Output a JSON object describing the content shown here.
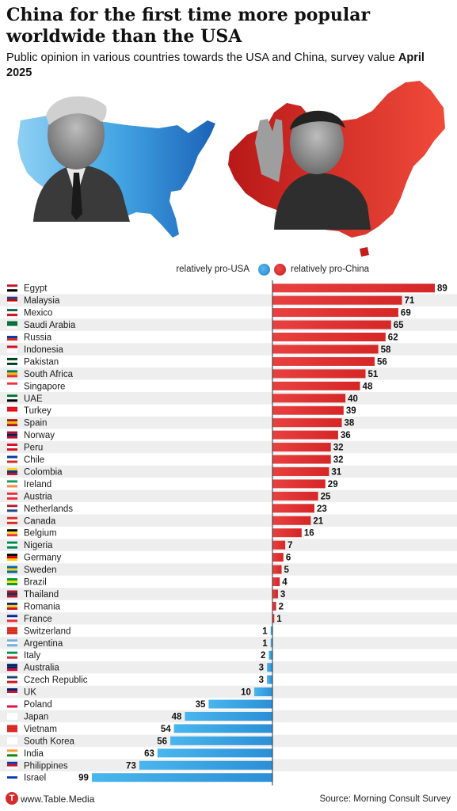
{
  "header": {
    "title": "China for the first time more popular worldwide than the USA",
    "subtitle_text": "Public opinion in various countries towards the USA and China, survey value ",
    "subtitle_bold": "April 2025"
  },
  "legend": {
    "usa_label": "relatively pro-USA",
    "china_label": "relatively pro-China",
    "usa_color": "#2b8fd6",
    "china_color": "#d62626"
  },
  "hero": {
    "left_map": "usa-map-silhouette",
    "right_map": "china-map-silhouette",
    "left_portrait": "portrait-usa-leader",
    "right_portrait": "portrait-china-leader"
  },
  "chart_data": {
    "type": "bar",
    "orientation": "horizontal-diverging",
    "categories": [
      "Egypt",
      "Malaysia",
      "Mexico",
      "Saudi Arabia",
      "Russia",
      "Indonesia",
      "Pakistan",
      "South Africa",
      "Singapore",
      "UAE",
      "Turkey",
      "Spain",
      "Norway",
      "Peru",
      "Chile",
      "Colombia",
      "Ireland",
      "Austria",
      "Netherlands",
      "Canada",
      "Belgium",
      "Nigeria",
      "Germany",
      "Sweden",
      "Brazil",
      "Thailand",
      "Romania",
      "France",
      "Switzerland",
      "Argentina",
      "Italy",
      "Australia",
      "Czech Republic",
      "UK",
      "Poland",
      "Japan",
      "Vietnam",
      "South Korea",
      "India",
      "Philippines",
      "Israel"
    ],
    "series": [
      {
        "name": "relatively pro-China",
        "color": "#d62626",
        "values": [
          89,
          71,
          69,
          65,
          62,
          58,
          56,
          51,
          48,
          40,
          39,
          38,
          36,
          32,
          32,
          31,
          29,
          25,
          23,
          21,
          16,
          7,
          6,
          5,
          4,
          3,
          2,
          1,
          null,
          null,
          null,
          null,
          null,
          null,
          null,
          null,
          null,
          null,
          null,
          null,
          null
        ]
      },
      {
        "name": "relatively pro-USA",
        "color": "#2b8fd6",
        "values": [
          null,
          null,
          null,
          null,
          null,
          null,
          null,
          null,
          null,
          null,
          null,
          null,
          null,
          null,
          null,
          null,
          null,
          null,
          null,
          null,
          null,
          null,
          null,
          null,
          null,
          null,
          null,
          null,
          1,
          1,
          2,
          3,
          3,
          10,
          35,
          48,
          54,
          56,
          63,
          73,
          99
        ]
      }
    ],
    "xlim": [
      -99,
      89
    ],
    "grid": false,
    "legend_position": "top-right"
  },
  "footer": {
    "site": "www.Table.Media",
    "logo_letter": "T",
    "source": "Source: Morning Consult Survey"
  }
}
